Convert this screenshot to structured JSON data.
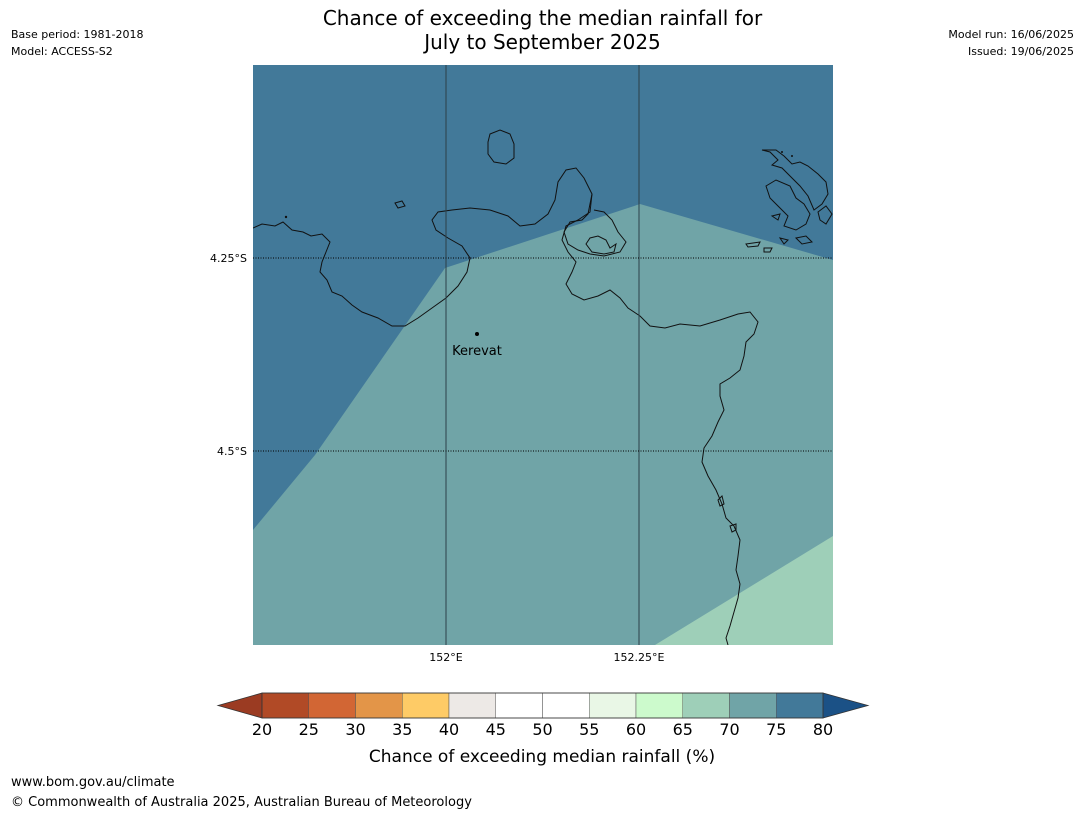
{
  "header": {
    "title_line1": "Chance of exceeding the median rainfall for",
    "title_line2": "July to September 2025",
    "base_period": "Base period: 1981-2018",
    "model": "Model: ACCESS-S2",
    "model_run": "Model run: 16/06/2025",
    "issued": "Issued: 19/06/2025"
  },
  "map": {
    "lat_labels": [
      "4.25°S",
      "4.5°S"
    ],
    "lon_labels": [
      "152°E",
      "152.25°E"
    ],
    "place_label": "Kerevat",
    "region_colors": {
      "band_75_80": "#427999",
      "band_70_75": "#70a4a7",
      "band_65_70": "#9ecfb8"
    }
  },
  "colorbar": {
    "ticks": [
      "20",
      "25",
      "30",
      "35",
      "40",
      "45",
      "50",
      "55",
      "60",
      "65",
      "70",
      "75",
      "80"
    ],
    "label": "Chance of exceeding median rainfall (%)",
    "under_color": "#9b3b22",
    "over_color": "#1b5186",
    "band_colors": [
      "#b14a26",
      "#d26634",
      "#e39548",
      "#fecb66",
      "#ede9e6",
      "#ffffff",
      "#ffffff",
      "#e9f7e6",
      "#ccfacc",
      "#9ecfb8",
      "#70a4a7",
      "#427999"
    ]
  },
  "footer": {
    "url": "www.bom.gov.au/climate",
    "copyright": "© Commonwealth of Australia 2025, Australian Bureau of Meteorology"
  }
}
